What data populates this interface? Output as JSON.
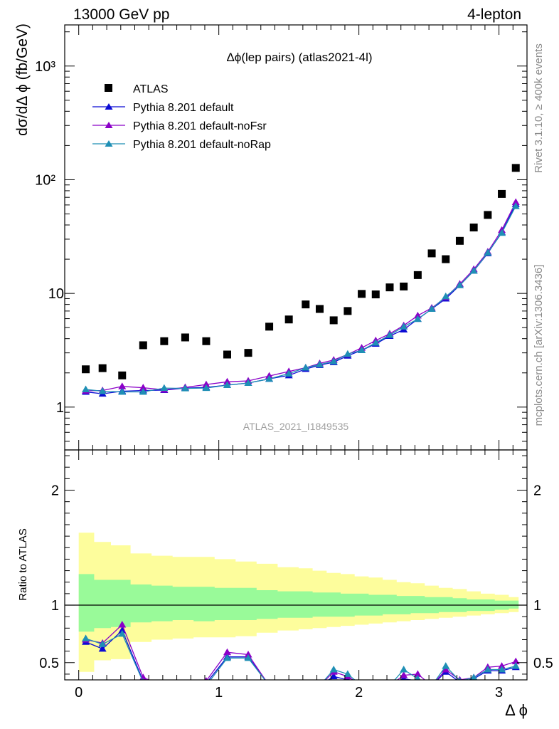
{
  "header": {
    "left": "13000 GeV pp",
    "right": "4-lepton"
  },
  "side_labels": {
    "rivet": "Rivet 3.1.10, ≥ 400k events",
    "mcplots": "mcplots.cern.ch [arXiv:1306.3436]"
  },
  "chart_data": {
    "type": "scatter",
    "title": "Δϕ(lep pairs) (atlas2021-4l)",
    "watermark": "ATLAS_2021_I1849535",
    "xlabel": "Δ ϕ",
    "ylabel": "dσ/dΔ ϕ (fb/GeV)",
    "ratio_ylabel": "Ratio to ATLAS",
    "xlim": [
      -0.1,
      3.2
    ],
    "ylim": [
      0.42,
      2300
    ],
    "yscale": "log",
    "ratio_ylim": [
      0.35,
      2.35
    ],
    "x_ticks": [
      "0",
      "1",
      "2",
      "3"
    ],
    "y_ticks": [
      "1",
      "10",
      "10²",
      "10³"
    ],
    "ratio_ticks": [
      "0.5",
      "1",
      "2"
    ],
    "legend_position": "top-left",
    "bin_edges": [
      0,
      0.11,
      0.23,
      0.37,
      0.52,
      0.67,
      0.82,
      0.97,
      1.12,
      1.27,
      1.42,
      1.57,
      1.67,
      1.77,
      1.87,
      1.97,
      2.07,
      2.17,
      2.27,
      2.37,
      2.47,
      2.57,
      2.67,
      2.77,
      2.87,
      2.97,
      3.07,
      3.14
    ],
    "x": [
      0.05,
      0.17,
      0.31,
      0.46,
      0.61,
      0.76,
      0.91,
      1.06,
      1.21,
      1.36,
      1.5,
      1.62,
      1.72,
      1.82,
      1.92,
      2.02,
      2.12,
      2.22,
      2.32,
      2.42,
      2.52,
      2.62,
      2.72,
      2.82,
      2.92,
      3.02,
      3.12
    ],
    "atlas": [
      2.15,
      2.2,
      1.9,
      3.5,
      3.8,
      4.1,
      3.8,
      2.9,
      3.0,
      5.1,
      5.9,
      8.0,
      7.3,
      5.8,
      7.0,
      9.9,
      9.8,
      11.3,
      11.5,
      14.5,
      22.5,
      20.0,
      29.0,
      38.0,
      49.0,
      75.0,
      127.0
    ],
    "band_inner": [
      [
        0.77,
        1.27
      ],
      [
        0.8,
        1.22
      ],
      [
        0.81,
        1.22
      ],
      [
        0.85,
        1.18
      ],
      [
        0.86,
        1.17
      ],
      [
        0.87,
        1.16
      ],
      [
        0.86,
        1.16
      ],
      [
        0.87,
        1.15
      ],
      [
        0.87,
        1.15
      ],
      [
        0.88,
        1.13
      ],
      [
        0.89,
        1.12
      ],
      [
        0.89,
        1.12
      ],
      [
        0.9,
        1.11
      ],
      [
        0.9,
        1.11
      ],
      [
        0.9,
        1.1
      ],
      [
        0.91,
        1.1
      ],
      [
        0.91,
        1.09
      ],
      [
        0.92,
        1.09
      ],
      [
        0.92,
        1.08
      ],
      [
        0.93,
        1.08
      ],
      [
        0.93,
        1.07
      ],
      [
        0.94,
        1.07
      ],
      [
        0.94,
        1.06
      ],
      [
        0.95,
        1.05
      ],
      [
        0.95,
        1.05
      ],
      [
        0.96,
        1.04
      ],
      [
        0.97,
        1.04
      ]
    ],
    "band_outer": [
      [
        0.42,
        1.63
      ],
      [
        0.52,
        1.55
      ],
      [
        0.53,
        1.52
      ],
      [
        0.68,
        1.45
      ],
      [
        0.7,
        1.43
      ],
      [
        0.71,
        1.42
      ],
      [
        0.72,
        1.42
      ],
      [
        0.72,
        1.4
      ],
      [
        0.73,
        1.38
      ],
      [
        0.76,
        1.36
      ],
      [
        0.78,
        1.33
      ],
      [
        0.79,
        1.32
      ],
      [
        0.8,
        1.3
      ],
      [
        0.81,
        1.28
      ],
      [
        0.82,
        1.27
      ],
      [
        0.83,
        1.25
      ],
      [
        0.84,
        1.24
      ],
      [
        0.85,
        1.22
      ],
      [
        0.86,
        1.2
      ],
      [
        0.87,
        1.19
      ],
      [
        0.88,
        1.17
      ],
      [
        0.89,
        1.15
      ],
      [
        0.9,
        1.14
      ],
      [
        0.91,
        1.12
      ],
      [
        0.92,
        1.1
      ],
      [
        0.93,
        1.09
      ],
      [
        0.94,
        1.07
      ]
    ],
    "series": [
      {
        "name": "ATLAS",
        "color": "#000000",
        "marker": "square"
      },
      {
        "name": "Pythia 8.201 default",
        "color": "#0b0bd4",
        "marker": "triangle",
        "values": [
          1.36,
          1.31,
          1.38,
          1.4,
          1.41,
          1.47,
          1.49,
          1.56,
          1.63,
          1.77,
          1.9,
          2.16,
          2.34,
          2.48,
          2.83,
          3.16,
          3.6,
          4.22,
          4.8,
          5.95,
          7.3,
          9.0,
          11.8,
          15.8,
          22.5,
          34.5,
          61.0
        ],
        "ratio": [
          0.68,
          0.62,
          0.78,
          0.34,
          0.3,
          0.3,
          0.32,
          0.55,
          0.55,
          0.3,
          0.3,
          0.3,
          0.3,
          0.38,
          0.35,
          0.3,
          0.3,
          0.3,
          0.36,
          0.34,
          0.3,
          0.42,
          0.33,
          0.36,
          0.43,
          0.43,
          0.46
        ]
      },
      {
        "name": "Pythia 8.201 default-noFsr",
        "color": "#8b00c8",
        "marker": "triangle",
        "values": [
          1.39,
          1.4,
          1.52,
          1.48,
          1.42,
          1.49,
          1.58,
          1.67,
          1.7,
          1.88,
          2.06,
          2.22,
          2.42,
          2.6,
          2.91,
          3.32,
          3.85,
          4.42,
          5.22,
          6.38,
          7.45,
          9.25,
          12.1,
          16.3,
          23.2,
          36.0,
          63.5
        ],
        "ratio": [
          0.7,
          0.67,
          0.83,
          0.37,
          0.3,
          0.3,
          0.34,
          0.59,
          0.57,
          0.3,
          0.3,
          0.3,
          0.3,
          0.42,
          0.38,
          0.3,
          0.3,
          0.3,
          0.39,
          0.4,
          0.3,
          0.44,
          0.35,
          0.37,
          0.46,
          0.47,
          0.51
        ]
      },
      {
        "name": "Pythia 8.201 default-noRap",
        "color": "#1f8fb5",
        "marker": "triangle",
        "values": [
          1.43,
          1.38,
          1.36,
          1.36,
          1.47,
          1.46,
          1.47,
          1.56,
          1.63,
          1.77,
          1.97,
          2.22,
          2.37,
          2.52,
          2.93,
          3.16,
          3.68,
          4.3,
          5.1,
          5.95,
          7.3,
          9.4,
          11.8,
          15.8,
          22.8,
          34.0,
          58.5
        ],
        "ratio": [
          0.71,
          0.66,
          0.75,
          0.33,
          0.3,
          0.3,
          0.3,
          0.54,
          0.54,
          0.3,
          0.3,
          0.3,
          0.3,
          0.44,
          0.4,
          0.3,
          0.3,
          0.3,
          0.44,
          0.36,
          0.3,
          0.47,
          0.34,
          0.37,
          0.44,
          0.44,
          0.47
        ]
      }
    ]
  }
}
